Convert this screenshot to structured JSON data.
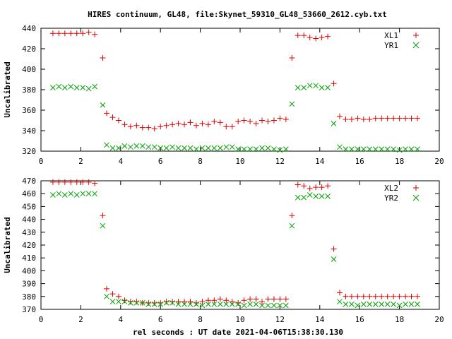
{
  "title": "HIRES continuum, GL48, file:Skynet_59310_GL48_53660_2612.cyb.txt",
  "xlabel": "rel seconds : UT date 2021-04-06T15:38:30.130",
  "chart_data": [
    {
      "type": "scatter",
      "ylabel": "Uncalibrated",
      "xlim": [
        0,
        20
      ],
      "ylim": [
        320,
        440
      ],
      "xticks": [
        0,
        2,
        4,
        6,
        8,
        10,
        12,
        14,
        16,
        18,
        20
      ],
      "yticks": [
        320,
        340,
        360,
        380,
        400,
        420,
        440
      ],
      "grid": false,
      "legend_position": "top-right",
      "series": [
        {
          "name": "XL1",
          "color": "#e00000",
          "marker": "plus",
          "x": [
            0.6,
            0.9,
            1.2,
            1.5,
            1.8,
            2.1,
            2.4,
            2.7,
            3.1,
            3.3,
            3.6,
            3.9,
            4.2,
            4.5,
            4.8,
            5.1,
            5.4,
            5.7,
            6.0,
            6.3,
            6.6,
            6.9,
            7.2,
            7.5,
            7.8,
            8.1,
            8.4,
            8.7,
            9.0,
            9.3,
            9.6,
            9.9,
            10.2,
            10.5,
            10.8,
            11.1,
            11.4,
            11.7,
            12.0,
            12.3,
            12.6,
            12.9,
            13.2,
            13.5,
            13.8,
            14.1,
            14.4,
            14.7,
            15.0,
            15.3,
            15.6,
            15.9,
            16.2,
            16.5,
            16.8,
            17.1,
            17.4,
            17.7,
            18.0,
            18.3,
            18.6,
            18.9
          ],
          "y": [
            435,
            435,
            435,
            435,
            435,
            435,
            436,
            434,
            411,
            357,
            353,
            350,
            346,
            344,
            345,
            343,
            343,
            342,
            344,
            345,
            346,
            347,
            346,
            348,
            345,
            347,
            346,
            349,
            348,
            344,
            344,
            349,
            350,
            349,
            347,
            350,
            349,
            350,
            352,
            351,
            411,
            433,
            433,
            431,
            430,
            431,
            432,
            386,
            354,
            351,
            351,
            352,
            351,
            351,
            352,
            352,
            352,
            352,
            352,
            352,
            352,
            352
          ],
          "x_drawn_count_note": ""
        },
        {
          "name": "YR1",
          "color": "#00a000",
          "marker": "cross",
          "x": [
            0.6,
            0.9,
            1.2,
            1.5,
            1.8,
            2.1,
            2.4,
            2.7,
            3.1,
            3.3,
            3.6,
            3.9,
            4.2,
            4.5,
            4.8,
            5.1,
            5.4,
            5.7,
            6.0,
            6.3,
            6.6,
            6.9,
            7.2,
            7.5,
            7.8,
            8.1,
            8.4,
            8.7,
            9.0,
            9.3,
            9.6,
            9.9,
            10.2,
            10.5,
            10.8,
            11.1,
            11.4,
            11.7,
            12.0,
            12.3,
            12.6,
            12.9,
            13.2,
            13.5,
            13.8,
            14.1,
            14.4,
            14.7,
            15.0,
            15.3,
            15.6,
            15.9,
            16.2,
            16.5,
            16.8,
            17.1,
            17.4,
            17.7,
            18.0,
            18.3,
            18.6,
            18.9
          ],
          "y": [
            382,
            383,
            382,
            383,
            382,
            382,
            381,
            383,
            365,
            326,
            323,
            323,
            325,
            324,
            325,
            325,
            324,
            324,
            323,
            323,
            324,
            323,
            323,
            323,
            322,
            323,
            323,
            323,
            323,
            324,
            324,
            322,
            322,
            322,
            322,
            323,
            323,
            322,
            321,
            322,
            366,
            382,
            382,
            384,
            384,
            382,
            382,
            347,
            324,
            322,
            322,
            322,
            322,
            322,
            322,
            322,
            322,
            322,
            321,
            322,
            322,
            322
          ]
        }
      ]
    },
    {
      "type": "scatter",
      "ylabel": "Uncalibrated",
      "xlim": [
        0,
        20
      ],
      "ylim": [
        370,
        470
      ],
      "xticks": [
        0,
        2,
        4,
        6,
        8,
        10,
        12,
        14,
        16,
        18,
        20
      ],
      "yticks": [
        370,
        380,
        390,
        400,
        410,
        420,
        430,
        440,
        450,
        460,
        470
      ],
      "grid": false,
      "legend_position": "top-right",
      "series": [
        {
          "name": "XL2",
          "color": "#e00000",
          "marker": "plus",
          "x": [
            0.6,
            0.9,
            1.2,
            1.5,
            1.8,
            2.1,
            2.4,
            2.7,
            3.1,
            3.3,
            3.6,
            3.9,
            4.2,
            4.5,
            4.8,
            5.1,
            5.4,
            5.7,
            6.0,
            6.3,
            6.6,
            6.9,
            7.2,
            7.5,
            7.8,
            8.1,
            8.4,
            8.7,
            9.0,
            9.3,
            9.6,
            9.9,
            10.2,
            10.5,
            10.8,
            11.1,
            11.4,
            11.7,
            12.0,
            12.3,
            12.6,
            12.9,
            13.2,
            13.5,
            13.8,
            14.1,
            14.4,
            14.7,
            15.0,
            15.3,
            15.6,
            15.9,
            16.2,
            16.5,
            16.8,
            17.1,
            17.4,
            17.7,
            18.0,
            18.3,
            18.6,
            18.9
          ],
          "y": [
            469,
            469,
            469,
            469,
            469,
            469,
            469,
            468,
            443,
            386,
            382,
            380,
            377,
            376,
            376,
            375,
            375,
            375,
            375,
            376,
            376,
            376,
            376,
            376,
            375,
            376,
            377,
            377,
            378,
            377,
            376,
            375,
            377,
            378,
            378,
            376,
            378,
            378,
            378,
            378,
            443,
            467,
            466,
            464,
            465,
            465,
            466,
            417,
            383,
            380,
            380,
            380,
            380,
            380,
            380,
            380,
            380,
            380,
            380,
            380,
            380,
            380
          ]
        },
        {
          "name": "YR2",
          "color": "#00a000",
          "marker": "cross",
          "x": [
            0.6,
            0.9,
            1.2,
            1.5,
            1.8,
            2.1,
            2.4,
            2.7,
            3.1,
            3.3,
            3.6,
            3.9,
            4.2,
            4.5,
            4.8,
            5.1,
            5.4,
            5.7,
            6.0,
            6.3,
            6.6,
            6.9,
            7.2,
            7.5,
            7.8,
            8.1,
            8.4,
            8.7,
            9.0,
            9.3,
            9.6,
            9.9,
            10.2,
            10.5,
            10.8,
            11.1,
            11.4,
            11.7,
            12.0,
            12.3,
            12.6,
            12.9,
            13.2,
            13.5,
            13.8,
            14.1,
            14.4,
            14.7,
            15.0,
            15.3,
            15.6,
            15.9,
            16.2,
            16.5,
            16.8,
            17.1,
            17.4,
            17.7,
            18.0,
            18.3,
            18.6,
            18.9
          ],
          "y": [
            459,
            460,
            459,
            460,
            459,
            460,
            460,
            460,
            435,
            380,
            376,
            376,
            376,
            375,
            375,
            375,
            374,
            374,
            374,
            375,
            375,
            374,
            374,
            374,
            374,
            373,
            374,
            374,
            374,
            374,
            374,
            374,
            373,
            374,
            374,
            373,
            373,
            373,
            373,
            373,
            435,
            457,
            457,
            459,
            458,
            458,
            458,
            409,
            376,
            374,
            374,
            373,
            374,
            374,
            374,
            374,
            374,
            374,
            373,
            374,
            374,
            374
          ]
        }
      ]
    }
  ]
}
